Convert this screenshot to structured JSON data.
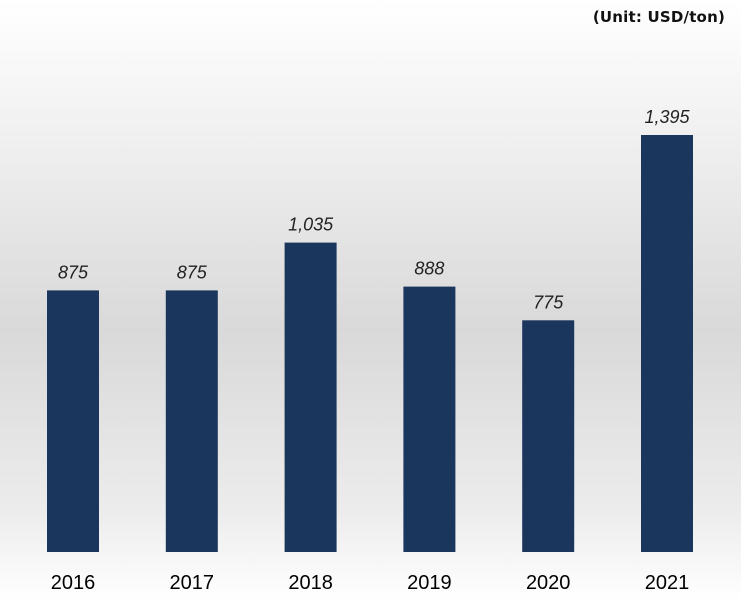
{
  "chart_data": {
    "type": "bar",
    "unit_note": "(Unit: USD/ton)",
    "categories": [
      "2016",
      "2017",
      "2018",
      "2019",
      "2020",
      "2021"
    ],
    "values": [
      875,
      875,
      1035,
      888,
      775,
      1395
    ],
    "value_labels": [
      "875",
      "875",
      "1,035",
      "888",
      "775",
      "1,395"
    ],
    "ylim": [
      0,
      1395
    ],
    "grid": false,
    "legend": "none",
    "bar_color": "#1b365d"
  }
}
